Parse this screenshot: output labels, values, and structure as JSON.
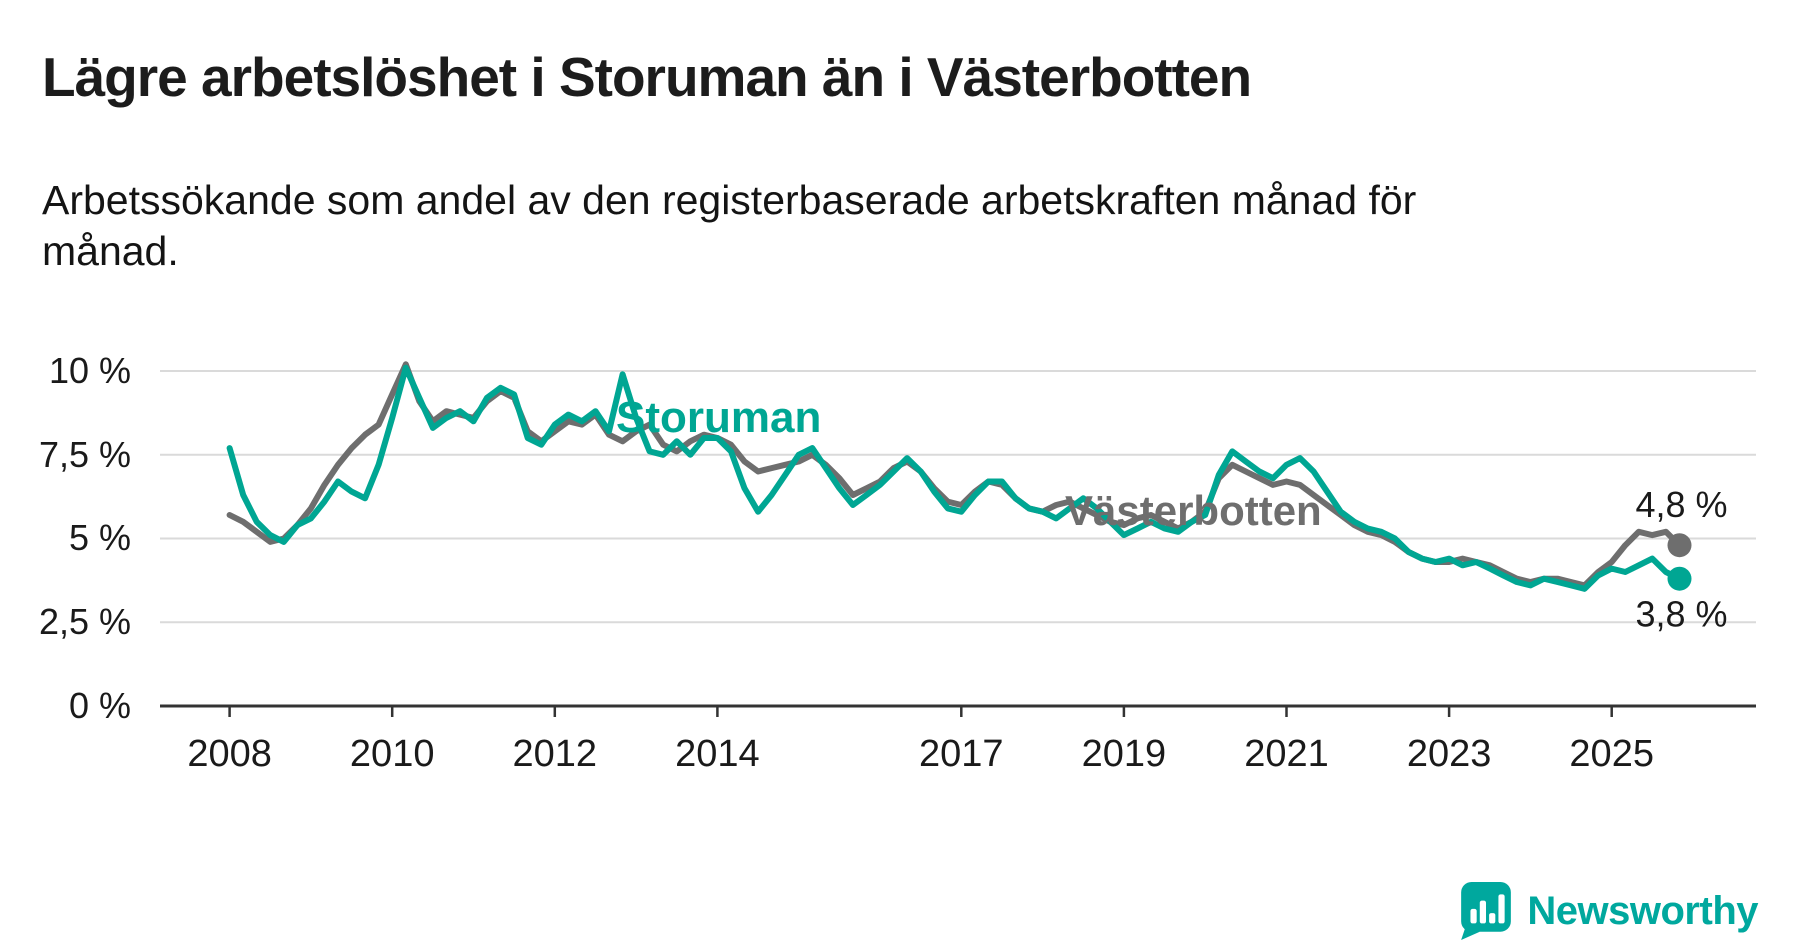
{
  "title": "Lägre arbetslöshet i Storuman än i Västerbotten",
  "subtitle": "Arbetssökande som andel av den registerbaserade arbetskraften månad för månad.",
  "branding": {
    "logo_text": "Newsworthy",
    "brand_color": "#00A89E"
  },
  "chart_data": {
    "type": "line",
    "title": "Lägre arbetslöshet i Storuman än i Västerbotten",
    "subtitle": "Arbetssökande som andel av den registerbaserade arbetskraften månad för månad.",
    "unit": "%",
    "xlabel": "",
    "ylabel": "",
    "grid": true,
    "legend": "inline-labels",
    "ylim": [
      0,
      10.5
    ],
    "x_start_year": 2008,
    "points_per_year": 6,
    "x_ticks": [
      "2008",
      "2010",
      "2012",
      "2014",
      "2017",
      "2019",
      "2021",
      "2023",
      "2025"
    ],
    "y_ticks": [
      "10 %",
      "7,5 %",
      "5 %",
      "2,5 %",
      "0 %"
    ],
    "series": [
      {
        "name": "Västerbotten",
        "color": "#6E6E6E",
        "end_value": 4.8,
        "end_label": "4,8 %",
        "values": [
          5.7,
          5.5,
          5.2,
          4.9,
          5.0,
          5.4,
          5.9,
          6.6,
          7.2,
          7.7,
          8.1,
          8.4,
          9.3,
          10.2,
          9.1,
          8.5,
          8.8,
          8.7,
          8.6,
          9.1,
          9.4,
          9.2,
          8.2,
          7.9,
          8.2,
          8.5,
          8.4,
          8.7,
          8.1,
          7.9,
          8.2,
          8.4,
          7.8,
          7.6,
          7.9,
          8.1,
          8.0,
          7.8,
          7.3,
          7.0,
          7.1,
          7.2,
          7.3,
          7.5,
          7.2,
          6.8,
          6.3,
          6.5,
          6.7,
          7.1,
          7.3,
          7.0,
          6.5,
          6.1,
          6.0,
          6.4,
          6.7,
          6.6,
          6.2,
          5.9,
          5.8,
          6.0,
          6.1,
          5.9,
          5.7,
          5.5,
          5.4,
          5.6,
          5.7,
          5.5,
          5.3,
          5.5,
          5.8,
          6.8,
          7.2,
          7.0,
          6.8,
          6.6,
          6.7,
          6.6,
          6.3,
          6.0,
          5.7,
          5.4,
          5.2,
          5.1,
          4.9,
          4.6,
          4.4,
          4.3,
          4.3,
          4.4,
          4.3,
          4.2,
          4.0,
          3.8,
          3.7,
          3.8,
          3.8,
          3.7,
          3.6,
          4.0,
          4.3,
          4.8,
          5.2,
          5.1,
          5.2,
          4.8
        ]
      },
      {
        "name": "Storuman",
        "color": "#00A693",
        "end_value": 3.8,
        "end_label": "3,8 %",
        "values": [
          7.7,
          6.3,
          5.5,
          5.1,
          4.9,
          5.4,
          5.6,
          6.1,
          6.7,
          6.4,
          6.2,
          7.2,
          8.6,
          10.1,
          9.2,
          8.3,
          8.6,
          8.8,
          8.5,
          9.2,
          9.5,
          9.3,
          8.0,
          7.8,
          8.4,
          8.7,
          8.5,
          8.8,
          8.2,
          9.9,
          8.6,
          7.6,
          7.5,
          7.9,
          7.5,
          8.0,
          8.0,
          7.6,
          6.5,
          5.8,
          6.3,
          6.9,
          7.5,
          7.7,
          7.1,
          6.5,
          6.0,
          6.3,
          6.6,
          7.0,
          7.4,
          7.0,
          6.4,
          5.9,
          5.8,
          6.3,
          6.7,
          6.7,
          6.2,
          5.9,
          5.8,
          5.6,
          5.9,
          6.2,
          5.9,
          5.5,
          5.1,
          5.3,
          5.5,
          5.3,
          5.2,
          5.5,
          5.7,
          6.9,
          7.6,
          7.3,
          7.0,
          6.8,
          7.2,
          7.4,
          7.0,
          6.4,
          5.8,
          5.5,
          5.3,
          5.2,
          5.0,
          4.6,
          4.4,
          4.3,
          4.4,
          4.2,
          4.3,
          4.1,
          3.9,
          3.7,
          3.6,
          3.8,
          3.7,
          3.6,
          3.5,
          3.9,
          4.1,
          4.0,
          4.2,
          4.4,
          4.0,
          3.8
        ]
      }
    ]
  }
}
